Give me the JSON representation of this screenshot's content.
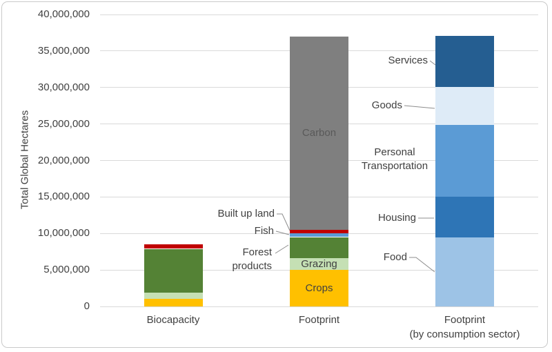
{
  "colors": {
    "background": "#FFFFFF",
    "border": "#C9C9C9",
    "gridline": "#D9D9D9",
    "text": "#404040",
    "leader_line": "#8C8C8C"
  },
  "chart_data": {
    "type": "bar",
    "subtype": "stacked",
    "title": "",
    "xlabel": "",
    "ylabel": "Total Global Hectares",
    "ylim": [
      0,
      40000000
    ],
    "grid": true,
    "legend": "none (segments labeled by callouts and inline labels)",
    "yticks": [
      {
        "v": 0,
        "label": "0"
      },
      {
        "v": 5000000,
        "label": "5,000,000"
      },
      {
        "v": 10000000,
        "label": "10,000,000"
      },
      {
        "v": 15000000,
        "label": "15,000,000"
      },
      {
        "v": 20000000,
        "label": "20,000,000"
      },
      {
        "v": 25000000,
        "label": "25,000,000"
      },
      {
        "v": 30000000,
        "label": "30,000,000"
      },
      {
        "v": 35000000,
        "label": "35,000,000"
      },
      {
        "v": 40000000,
        "label": "40,000,000"
      }
    ],
    "categories": [
      {
        "label_lines": [
          "Biocapacity"
        ]
      },
      {
        "label_lines": [
          "Footprint"
        ]
      },
      {
        "label_lines": [
          "Footprint",
          "(by consumption sector)"
        ]
      }
    ],
    "bars": [
      {
        "category": "Biocapacity",
        "segments": [
          {
            "name": "Crops",
            "value": 1000000,
            "color": "#FFC000"
          },
          {
            "name": "Grazing",
            "value": 900000,
            "color": "#C5E0B4"
          },
          {
            "name": "Forest products",
            "value": 6000000,
            "color": "#548235"
          },
          {
            "name": "Built up land",
            "value": 600000,
            "color": "#C00000"
          }
        ]
      },
      {
        "category": "Footprint",
        "segments": [
          {
            "name": "Crops",
            "value": 5000000,
            "color": "#FFC000",
            "inline_label": "Crops",
            "label_color": "#404040"
          },
          {
            "name": "Grazing",
            "value": 1600000,
            "color": "#C5E0B4",
            "inline_label": "Grazing",
            "label_color": "#404040"
          },
          {
            "name": "Forest products",
            "value": 2900000,
            "color": "#548235"
          },
          {
            "name": "Fish",
            "value": 500000,
            "color": "#5B9BD5"
          },
          {
            "name": "Built up land",
            "value": 500000,
            "color": "#C00000"
          },
          {
            "name": "Carbon",
            "value": 26500000,
            "color": "#7F7F7F",
            "inline_label": "Carbon",
            "label_color": "#595959"
          }
        ]
      },
      {
        "category": "Footprint (by consumption sector)",
        "segments": [
          {
            "name": "Food",
            "value": 9500000,
            "color": "#9DC3E6"
          },
          {
            "name": "Housing",
            "value": 5500000,
            "color": "#2E75B6"
          },
          {
            "name": "Personal Transportation",
            "value": 9900000,
            "color": "#5B9BD5"
          },
          {
            "name": "Goods",
            "value": 5200000,
            "color": "#DEEBF7"
          },
          {
            "name": "Services",
            "value": 7000000,
            "color": "#255E91"
          }
        ]
      }
    ],
    "annotations": [
      {
        "label_lines": [
          "Built up land"
        ],
        "target": "Footprint / Built up land"
      },
      {
        "label_lines": [
          "Fish"
        ],
        "target": "Footprint / Fish"
      },
      {
        "label_lines": [
          "Forest",
          "products"
        ],
        "target": "Footprint / Forest products"
      },
      {
        "label_lines": [
          "Services"
        ],
        "target": "Footprint by sector / Services"
      },
      {
        "label_lines": [
          "Goods"
        ],
        "target": "Footprint by sector / Goods"
      },
      {
        "label_lines": [
          "Personal",
          "Transportation"
        ],
        "target": "Footprint by sector / Personal Transportation"
      },
      {
        "label_lines": [
          "Housing"
        ],
        "target": "Footprint by sector / Housing"
      },
      {
        "label_lines": [
          "Food"
        ],
        "target": "Footprint by sector / Food"
      }
    ]
  }
}
